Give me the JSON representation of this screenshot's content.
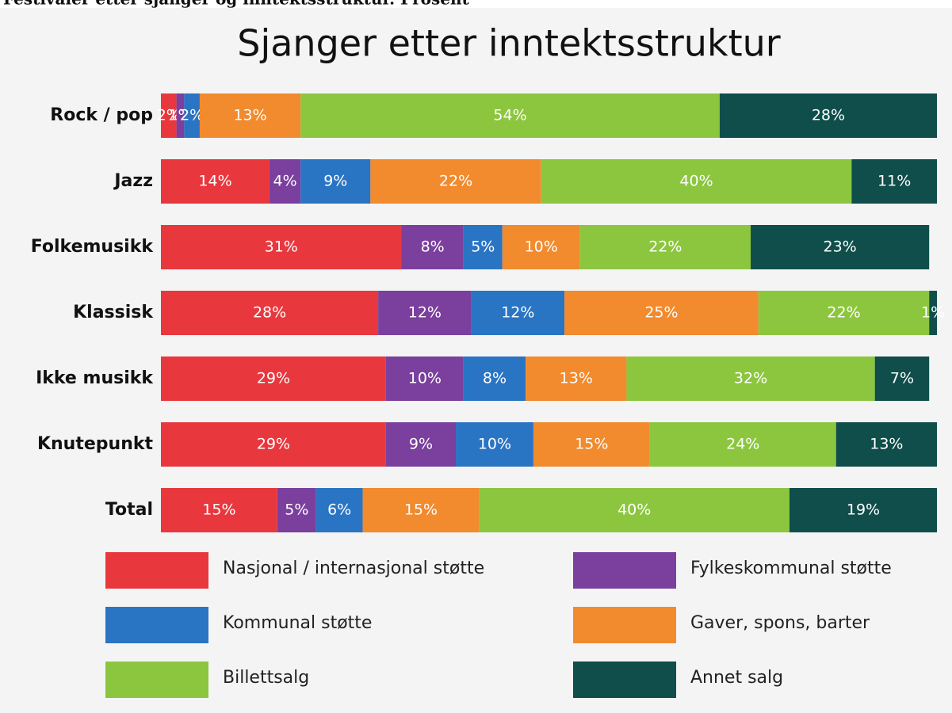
{
  "header": "Festivaler etter sjanger og inntektsstruktur. Prosent",
  "chart_data": {
    "type": "stacked-bar-horizontal",
    "title": "Sjanger etter inntektsstruktur",
    "categories": [
      "Rock / pop",
      "Jazz",
      "Folkemusikk",
      "Klassisk",
      "Ikke musikk",
      "Knutepunkt",
      "Total"
    ],
    "xlim": [
      0,
      100
    ],
    "series": [
      {
        "name": "Nasjonal / internasjonal støtte",
        "color": "#e8383d",
        "values": [
          2,
          14,
          31,
          28,
          29,
          29,
          15
        ],
        "value_labels": [
          "2%",
          "14%",
          "31%",
          "28%",
          "29%",
          "29%",
          "15%"
        ]
      },
      {
        "name": "Fylkeskommunal støtte",
        "color": "#7b3f9e",
        "values": [
          1,
          4,
          8,
          12,
          10,
          9,
          5
        ],
        "value_labels": [
          "1%",
          "4%",
          "8%",
          "12%",
          "10%",
          "9%",
          "5%"
        ]
      },
      {
        "name": "Kommunal støtte",
        "color": "#2a74c4",
        "values": [
          2,
          9,
          5,
          12,
          8,
          10,
          6
        ],
        "value_labels": [
          "2%",
          "9%",
          "5%",
          "12%",
          "8%",
          "10%",
          "6%"
        ]
      },
      {
        "name": "Gaver, spons, barter",
        "color": "#f28a2e",
        "values": [
          13,
          22,
          10,
          25,
          13,
          15,
          15
        ],
        "value_labels": [
          "13%",
          "22%",
          "10%",
          "25%",
          "13%",
          "15%",
          "15%"
        ]
      },
      {
        "name": "Billettsalg",
        "color": "#8cc63f",
        "values": [
          54,
          40,
          22,
          22,
          32,
          24,
          40
        ],
        "value_labels": [
          "54%",
          "40%",
          "22%",
          "22%",
          "32%",
          "24%",
          "40%"
        ]
      },
      {
        "name": "Annet salg",
        "color": "#0f4e4a",
        "values": [
          28,
          11,
          23,
          1,
          7,
          13,
          19
        ],
        "value_labels": [
          "28%",
          "11%",
          "23%",
          "1%",
          "7%",
          "13%",
          "19%"
        ]
      }
    ]
  }
}
